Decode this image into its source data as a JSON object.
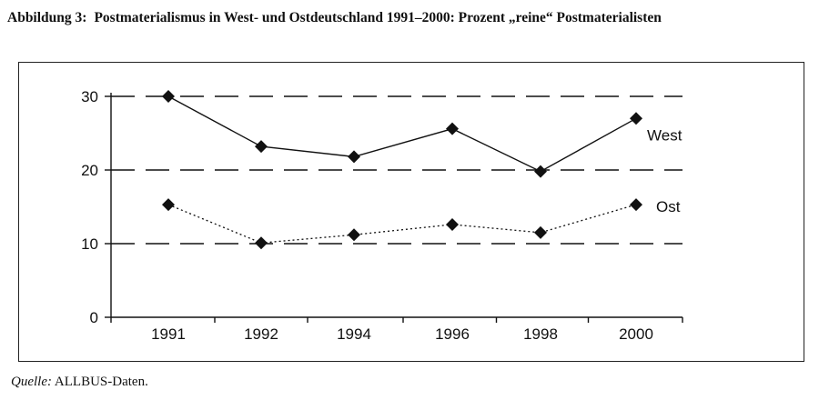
{
  "figure": {
    "label": "Abbildung 3:",
    "title": "Postmaterialismus in West- und Ostdeutschland 1991–2000: Prozent „reine“ Postmaterialisten",
    "source_label": "Quelle:",
    "source_text": "ALLBUS-Daten."
  },
  "chart_data": {
    "type": "line",
    "categories": [
      "1991",
      "1992",
      "1994",
      "1996",
      "1998",
      "2000"
    ],
    "series": [
      {
        "name": "West",
        "values": [
          30,
          23.2,
          21.8,
          25.6,
          19.8,
          27.0
        ],
        "line_style": "solid",
        "marker": "diamond"
      },
      {
        "name": "Ost",
        "values": [
          15.3,
          10.1,
          11.2,
          12.6,
          11.5,
          15.3
        ],
        "line_style": "dotted",
        "marker": "diamond"
      }
    ],
    "yticks": [
      0,
      10,
      20,
      30
    ],
    "ylim": [
      0,
      30
    ],
    "grid": "dashed horizontal at 10, 20, 30",
    "xlabel": "",
    "ylabel": "",
    "colors": {
      "line": "#111111",
      "grid": "#111111"
    }
  }
}
